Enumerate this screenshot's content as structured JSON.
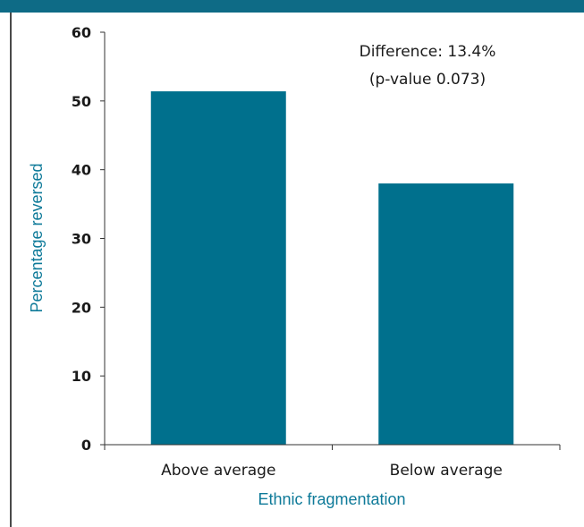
{
  "colors": {
    "header_band": "#0e6b86",
    "bar": "#00708d",
    "axis_title": "#0e7a99",
    "text": "#1a1a1a",
    "axis_line": "#333333"
  },
  "chart_data": {
    "type": "bar",
    "categories": [
      "Above average",
      "Below average"
    ],
    "values": [
      51.4,
      38.0
    ],
    "ylim": [
      0,
      60
    ],
    "yticks": [
      "0",
      "10",
      "20",
      "30",
      "40",
      "50",
      "60"
    ],
    "xlabel": "Ethnic fragmentation",
    "ylabel": "Percentage reversed",
    "annotation": [
      "Difference: 13.4%",
      "(p-value 0.073)"
    ],
    "grid": false,
    "legend": "none"
  }
}
